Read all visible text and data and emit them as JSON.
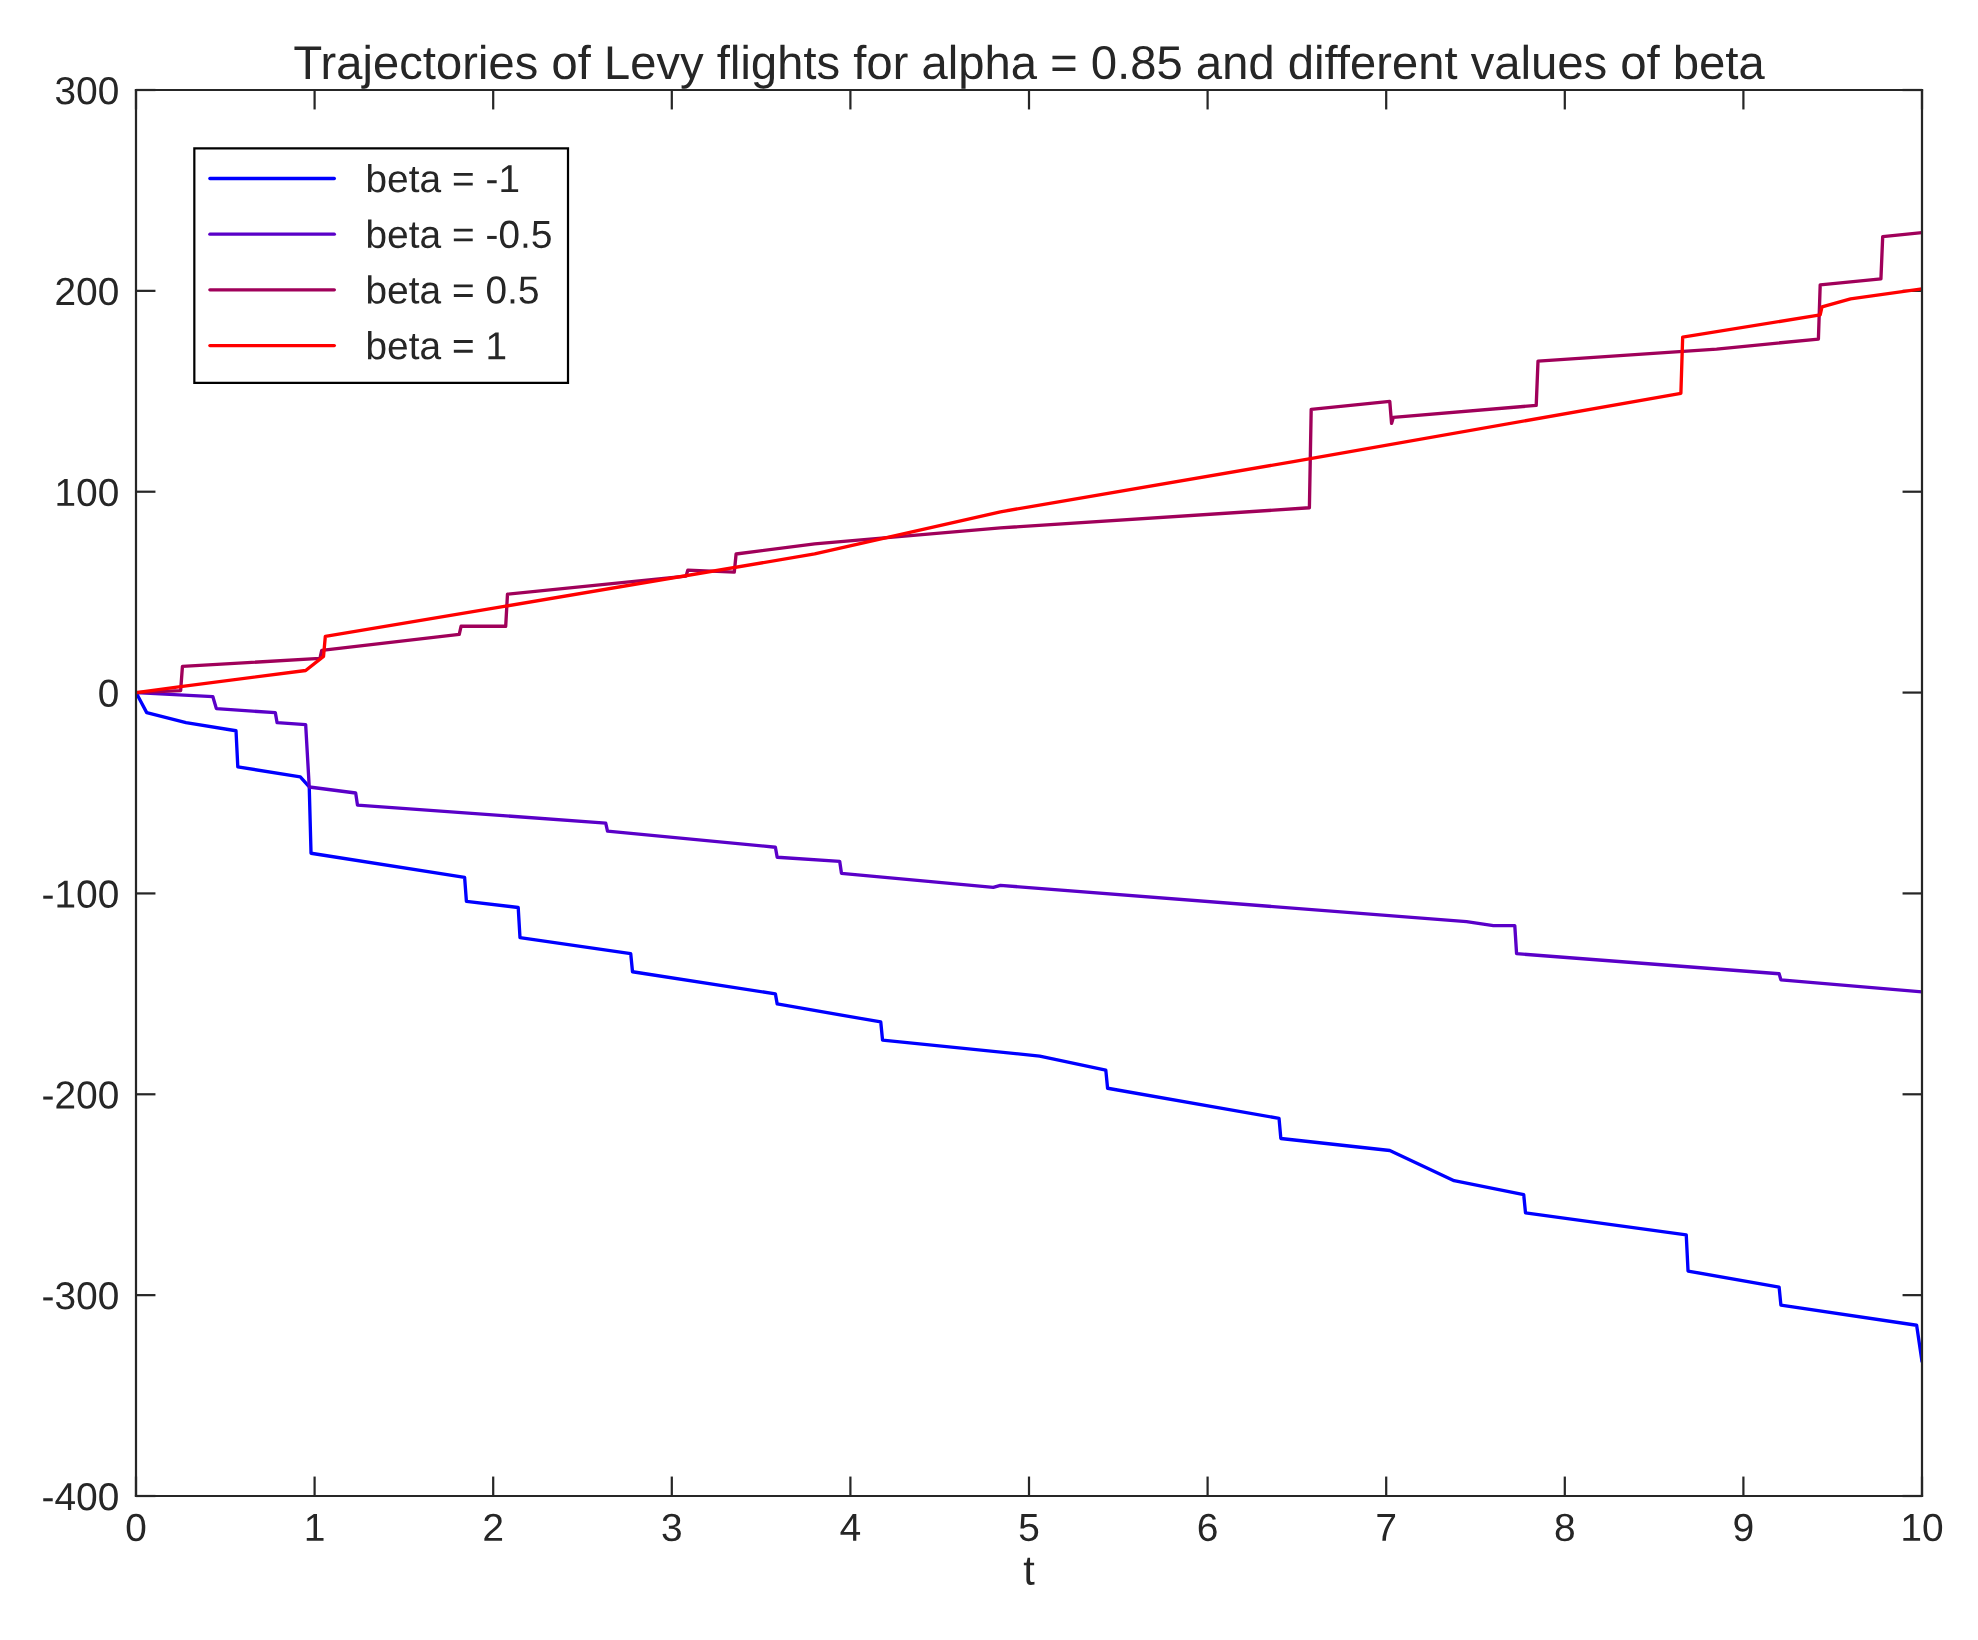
{
  "chart_data": {
    "type": "line",
    "title": "Trajectories of Levy flights for alpha = 0.85 and different values of beta",
    "xlabel": "t",
    "xlim": [
      0,
      10
    ],
    "xticks": [
      0,
      1,
      2,
      3,
      4,
      5,
      6,
      7,
      8,
      9,
      10
    ],
    "ylim": [
      -400,
      300
    ],
    "yticks": [
      -400,
      -300,
      -200,
      -100,
      0,
      100,
      200,
      300
    ],
    "legend": "top left",
    "series": [
      {
        "name": "beta = -1",
        "color": "#0000ff",
        "x": [
          0,
          0.06,
          0.28,
          0.56,
          0.57,
          0.92,
          0.97,
          0.98,
          1.84,
          1.85,
          2.14,
          2.15,
          2.77,
          2.78,
          3.58,
          3.59,
          4.17,
          4.18,
          5.06,
          5.43,
          5.44,
          6.4,
          6.41,
          7.02,
          7.38,
          7.77,
          7.78,
          8.68,
          8.69,
          9.2,
          9.21,
          9.97,
          10
        ],
        "values": [
          0,
          -10,
          -15,
          -19,
          -37,
          -42,
          -47,
          -80,
          -92,
          -104,
          -107,
          -122,
          -130,
          -139,
          -150,
          -155,
          -164,
          -173,
          -181,
          -188,
          -197,
          -212,
          -222,
          -228,
          -243,
          -250,
          -259,
          -270,
          -288,
          -296,
          -305,
          -315,
          -333
        ]
      },
      {
        "name": "beta = -0.5",
        "color": "#5a00c8",
        "x": [
          0,
          0.43,
          0.45,
          0.78,
          0.79,
          0.95,
          0.97,
          1.23,
          1.24,
          2.63,
          2.64,
          3.58,
          3.59,
          3.94,
          3.95,
          4.8,
          4.84,
          7.45,
          7.6,
          7.72,
          7.73,
          9.2,
          9.21,
          10
        ],
        "values": [
          0,
          -2,
          -8,
          -10,
          -15,
          -16,
          -47,
          -50,
          -56,
          -65,
          -69,
          -77,
          -82,
          -84,
          -90,
          -97,
          -96,
          -114,
          -116,
          -116,
          -130,
          -140,
          -143,
          -149
        ]
      },
      {
        "name": "beta = 0.5",
        "color": "#a0005a",
        "x": [
          0,
          0.25,
          0.26,
          1.03,
          1.04,
          1.81,
          1.82,
          2.07,
          2.08,
          3.08,
          3.09,
          3.35,
          3.36,
          3.8,
          4.84,
          6.57,
          6.58,
          7.02,
          7.03,
          7.04,
          7.84,
          7.85,
          8.85,
          9.42,
          9.43,
          9.77,
          9.78,
          10
        ],
        "values": [
          0,
          1,
          13,
          17,
          21,
          29,
          33,
          33,
          49,
          58,
          61,
          60,
          69,
          74,
          82,
          92,
          141,
          145,
          134,
          137,
          143,
          165,
          171,
          176,
          203,
          206,
          227,
          229
        ]
      },
      {
        "name": "beta = 1",
        "color": "#ff0000",
        "x": [
          0,
          0.25,
          0.95,
          1.05,
          1.06,
          2.07,
          3.8,
          4.84,
          6.48,
          8.65,
          8.66,
          9.43,
          9.44,
          9.6,
          10
        ],
        "values": [
          0,
          3,
          11,
          18,
          28,
          43,
          69,
          90,
          115,
          149,
          177,
          188,
          192,
          196,
          201
        ]
      }
    ]
  }
}
